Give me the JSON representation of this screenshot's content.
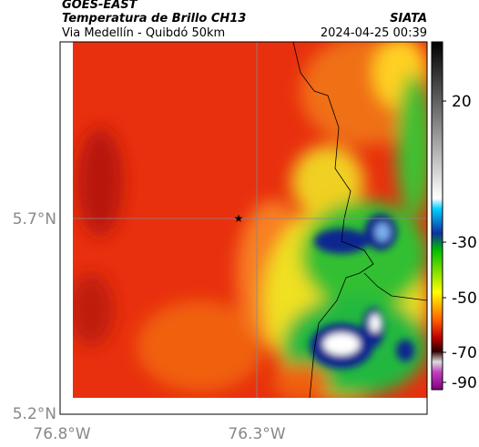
{
  "header": {
    "source": "GOES-EAST",
    "product": "Temperatura de Brillo CH13",
    "region": "Via Medellín - Quibdó 50km",
    "agency": "SIATA",
    "timestamp": "2024-04-25 00:39"
  },
  "map": {
    "yticks": [
      "5.7°N",
      "5.2°N"
    ],
    "xticks": [
      "76.8°W",
      "76.3°W"
    ]
  },
  "colorbar": {
    "ticks": [
      "20",
      "-30",
      "-50",
      "-70",
      "-90"
    ]
  }
}
